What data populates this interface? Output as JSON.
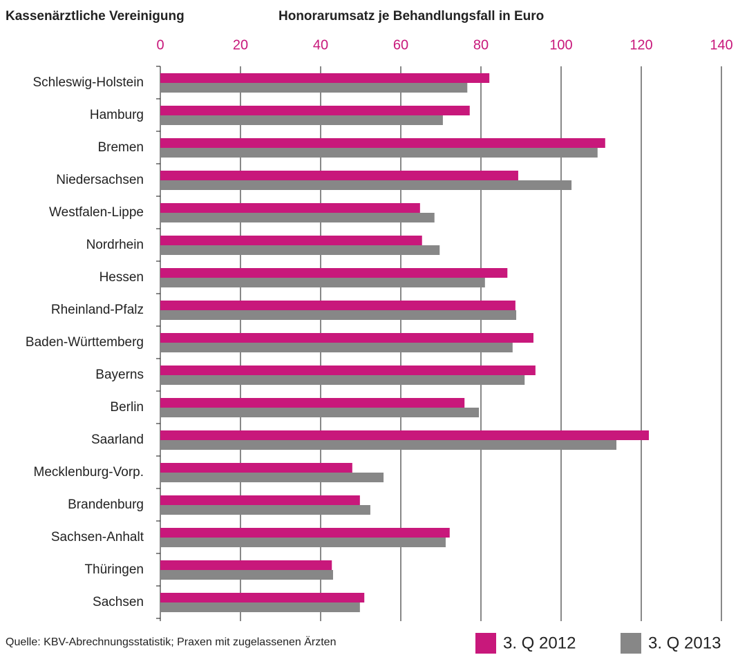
{
  "chart_data": {
    "type": "bar",
    "orientation": "horizontal",
    "y_axis_title": "Kassenärztliche Vereinigung",
    "title": "Honorarumsatz je Behandlungsfall in Euro",
    "source": "Quelle: KBV-Abrechnungsstatistik; Praxen mit zugelassenen Ärzten",
    "categories": [
      "Schleswig-Holstein",
      "Hamburg",
      "Bremen",
      "Niedersachsen",
      "Westfalen-Lippe",
      "Nordrhein",
      "Hessen",
      "Rheinland-Pfalz",
      "Baden-Württemberg",
      "Bayerns",
      "Berlin",
      "Saarland",
      "Mecklenburg-Vorp.",
      "Brandenburg",
      "Sachsen-Anhalt",
      "Thüringen",
      "Sachsen"
    ],
    "series": [
      {
        "name": "3. Q 2012",
        "color": "#c8187b",
        "values": [
          82.1,
          77.2,
          111,
          89.3,
          64.8,
          65.3,
          86.6,
          88.6,
          93.1,
          93.6,
          75.9,
          121.9,
          47.9,
          49.8,
          72.2,
          42.8,
          50.9
        ]
      },
      {
        "name": "3. Q 2013",
        "color": "#878787",
        "values": [
          76.6,
          70.5,
          109.1,
          102.6,
          68.4,
          69.7,
          81,
          88.8,
          87.9,
          90.9,
          79.5,
          113.8,
          55.7,
          52.4,
          71.2,
          43.1,
          49.8
        ]
      }
    ],
    "xlim": [
      0,
      140
    ],
    "xticks": [
      0,
      20,
      40,
      60,
      80,
      100,
      120,
      140
    ],
    "tick_color": "#c8187b",
    "grid": true,
    "legend": "bottom-right"
  }
}
